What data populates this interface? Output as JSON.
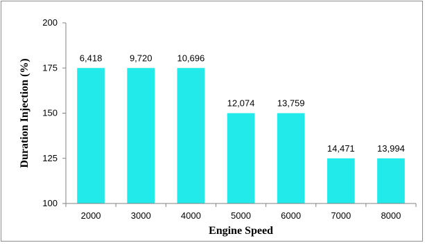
{
  "chart_data": {
    "type": "bar",
    "title": "",
    "xlabel": "Engine Speed",
    "ylabel": "Duration Injection  (%)",
    "categories": [
      "2000",
      "3000",
      "4000",
      "5000",
      "6000",
      "7000",
      "8000"
    ],
    "values": [
      175,
      175,
      175,
      150,
      150,
      125,
      125
    ],
    "data_labels": [
      "6,418",
      "9,720",
      "10,696",
      "12,074",
      "13,759",
      "14,471",
      "13,994"
    ],
    "ylim": [
      100,
      200
    ],
    "yticks": [
      "100",
      "125",
      "150",
      "175",
      "200"
    ],
    "grid": false,
    "legend": "none",
    "bar_color": "#22eaea"
  }
}
